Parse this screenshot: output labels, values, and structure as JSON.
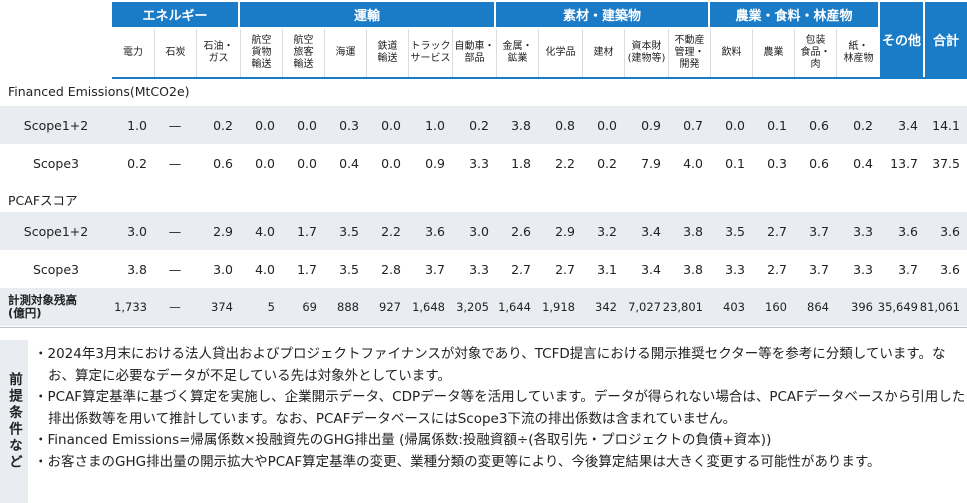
{
  "categories": [
    {
      "label": "エネルギー"
    },
    {
      "label": "運輸"
    },
    {
      "label": "素材・建築物"
    },
    {
      "label": "農業・食料・林産物"
    },
    {
      "label": "その他"
    },
    {
      "label": "合計"
    }
  ],
  "sectors": [
    "電力",
    "石炭",
    "石油・\nガス",
    "航空\n貨物\n輸送",
    "航空\n旅客\n輸送",
    "海運",
    "鉄道\n輸送",
    "トラック\nサービス",
    "自動車・\n部品",
    "金属・\n鉱業",
    "化学品",
    "建材",
    "資本財\n(建物等)",
    "不動産\n管理・\n開発",
    "飲料",
    "農業",
    "包装\n食品・\n肉",
    "紙・\n林産物"
  ],
  "sections": {
    "financed": "Financed Emissions(MtCO2e)",
    "pcaf": "PCAFスコア"
  },
  "rows": [
    {
      "label": "Scope1+2",
      "values": [
        "1.0",
        "—",
        "0.2",
        "0.0",
        "0.0",
        "0.3",
        "0.0",
        "1.0",
        "0.2",
        "3.8",
        "0.8",
        "0.0",
        "0.9",
        "0.7",
        "0.0",
        "0.1",
        "0.6",
        "0.2",
        "3.4",
        "14.1"
      ]
    },
    {
      "label": "Scope3",
      "values": [
        "0.2",
        "—",
        "0.6",
        "0.0",
        "0.0",
        "0.4",
        "0.0",
        "0.9",
        "3.3",
        "1.8",
        "2.2",
        "0.2",
        "7.9",
        "4.0",
        "0.1",
        "0.3",
        "0.6",
        "0.4",
        "13.7",
        "37.5"
      ]
    },
    {
      "label": "Scope1+2",
      "values": [
        "3.0",
        "—",
        "2.9",
        "4.0",
        "1.7",
        "3.5",
        "2.2",
        "3.6",
        "3.0",
        "2.6",
        "2.9",
        "3.2",
        "3.4",
        "3.8",
        "3.5",
        "2.7",
        "3.7",
        "3.3",
        "3.6",
        "3.6"
      ]
    },
    {
      "label": "Scope3",
      "values": [
        "3.8",
        "—",
        "3.0",
        "4.0",
        "1.7",
        "3.5",
        "2.8",
        "3.7",
        "3.3",
        "2.7",
        "2.7",
        "3.1",
        "3.4",
        "3.8",
        "3.3",
        "2.7",
        "3.7",
        "3.3",
        "3.7",
        "3.6"
      ]
    },
    {
      "label": "計測対象残高\n(億円)",
      "values": [
        "1,733",
        "—",
        "374",
        "5",
        "69",
        "888",
        "927",
        "1,648",
        "3,205",
        "1,644",
        "1,918",
        "342",
        "7,027",
        "23,801",
        "403",
        "160",
        "864",
        "396",
        "35,649",
        "81,061"
      ]
    }
  ],
  "notes_title": "前提条件など",
  "notes": [
    "・2024年3月末における法人貸出およびプロジェクトファイナンスが対象であり、TCFD提言における開示推奨セクター等を参考に分類しています。なお、算定に必要なデータが不足している先は対象外としています。",
    "・PCAF算定基準に基づく算定を実施し、企業開示データ、CDPデータ等を活用しています。データが得られない場合は、PCAFデータベースから引用した排出係数等を用いて推計しています。なお、PCAFデータベースにはScope3下流の排出係数は含まれていません。",
    "・Financed Emissions=帰属係数×投融資先のGHG排出量 (帰属係数:投融資額÷(各取引先・プロジェクトの負債+資本))",
    "・お客さまのGHG排出量の開示拡大やPCAF算定基準の変更、業種分類の変更等により、今後算定結果は大きく変更する可能性があります。"
  ],
  "colors": {
    "header": "#1a7bc7",
    "shade": "#e9ecf1"
  }
}
